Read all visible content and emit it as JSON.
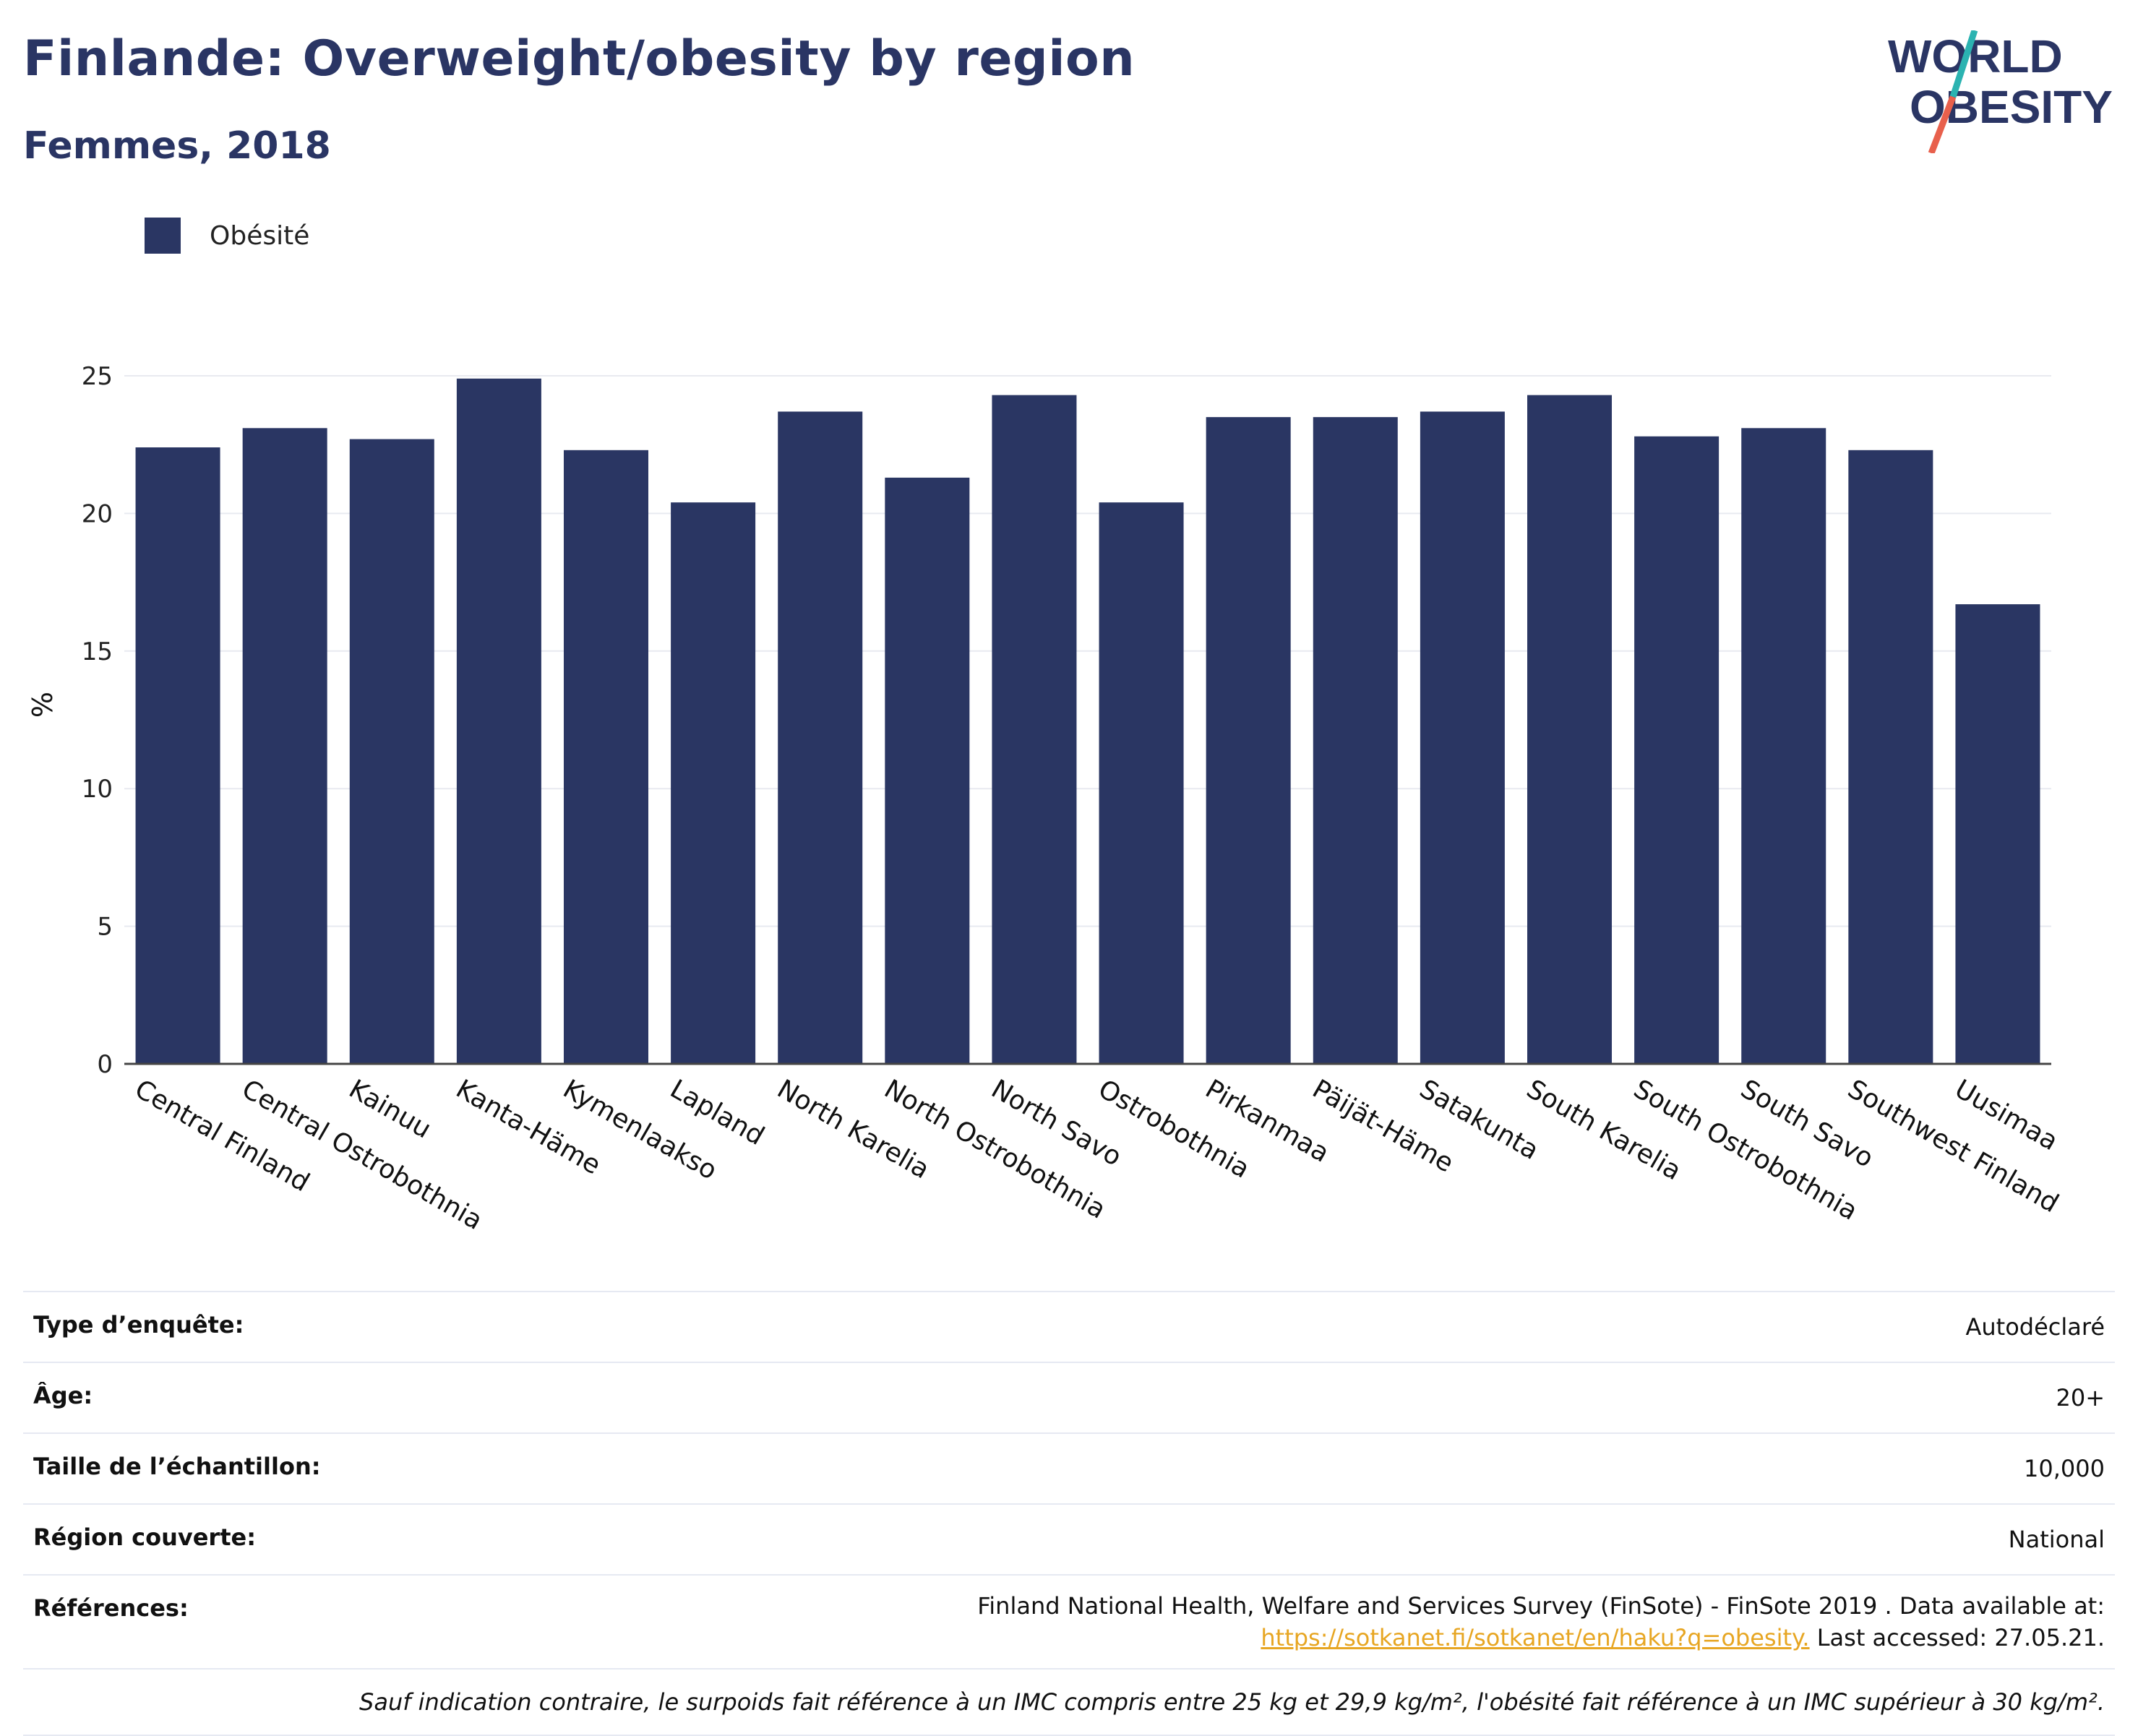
{
  "header": {
    "title": "Finlande: Overweight/obesity by region",
    "subtitle": "Femmes, 2018"
  },
  "logo": {
    "line1": "WORLD",
    "line2": "OBESITY",
    "colors": {
      "text": "#2a3564",
      "slash_teal": "#2bb3b1",
      "slash_coral": "#e8604c"
    }
  },
  "legend": {
    "items": [
      {
        "label": "Obésité",
        "color": "#2a3663"
      }
    ]
  },
  "chart_data": {
    "type": "bar",
    "title": "Finlande: Overweight/obesity by region",
    "subtitle": "Femmes, 2018",
    "xlabel": "",
    "ylabel": "%",
    "ylim": [
      0,
      25
    ],
    "yticks": [
      0,
      5,
      10,
      15,
      20,
      25
    ],
    "grid": true,
    "legend_position": "top-left",
    "categories": [
      "Central Finland",
      "Central Ostrobothnia",
      "Kainuu",
      "Kanta-Häme",
      "Kymenlaakso",
      "Lapland",
      "North Karelia",
      "North Ostrobothnia",
      "North Savo",
      "Ostrobothnia",
      "Pirkanmaa",
      "Päijät-Häme",
      "Satakunta",
      "South Karelia",
      "South Ostrobothnia",
      "South Savo",
      "Southwest Finland",
      "Uusimaa"
    ],
    "series": [
      {
        "name": "Obésité",
        "color": "#2a3663",
        "values": [
          22.4,
          23.1,
          22.7,
          24.9,
          22.3,
          20.4,
          23.7,
          21.3,
          24.3,
          20.4,
          23.5,
          23.5,
          23.7,
          24.3,
          22.8,
          23.1,
          22.3,
          16.7
        ]
      }
    ]
  },
  "meta": {
    "rows": [
      {
        "label": "Type d’enquête:",
        "value": "Autodéclaré"
      },
      {
        "label": "Âge:",
        "value": "20+"
      },
      {
        "label": "Taille de l’échantillon:",
        "value": "10,000"
      },
      {
        "label": "Région couverte:",
        "value": "National"
      }
    ],
    "references": {
      "label": "Références:",
      "line1": "Finland National Health, Welfare and Services Survey (FinSote) - FinSote 2019 . Data available at:",
      "link": "https://sotkanet.fi/sotkanet/en/haku?q=obesity.",
      "after_link": " Last accessed: 27.05.21."
    },
    "note": "Sauf indication contraire, le surpoids fait référence à un IMC compris entre 25 kg et 29,9 kg/m², l'obésité fait référence à un IMC supérieur à 30 kg/m²."
  }
}
